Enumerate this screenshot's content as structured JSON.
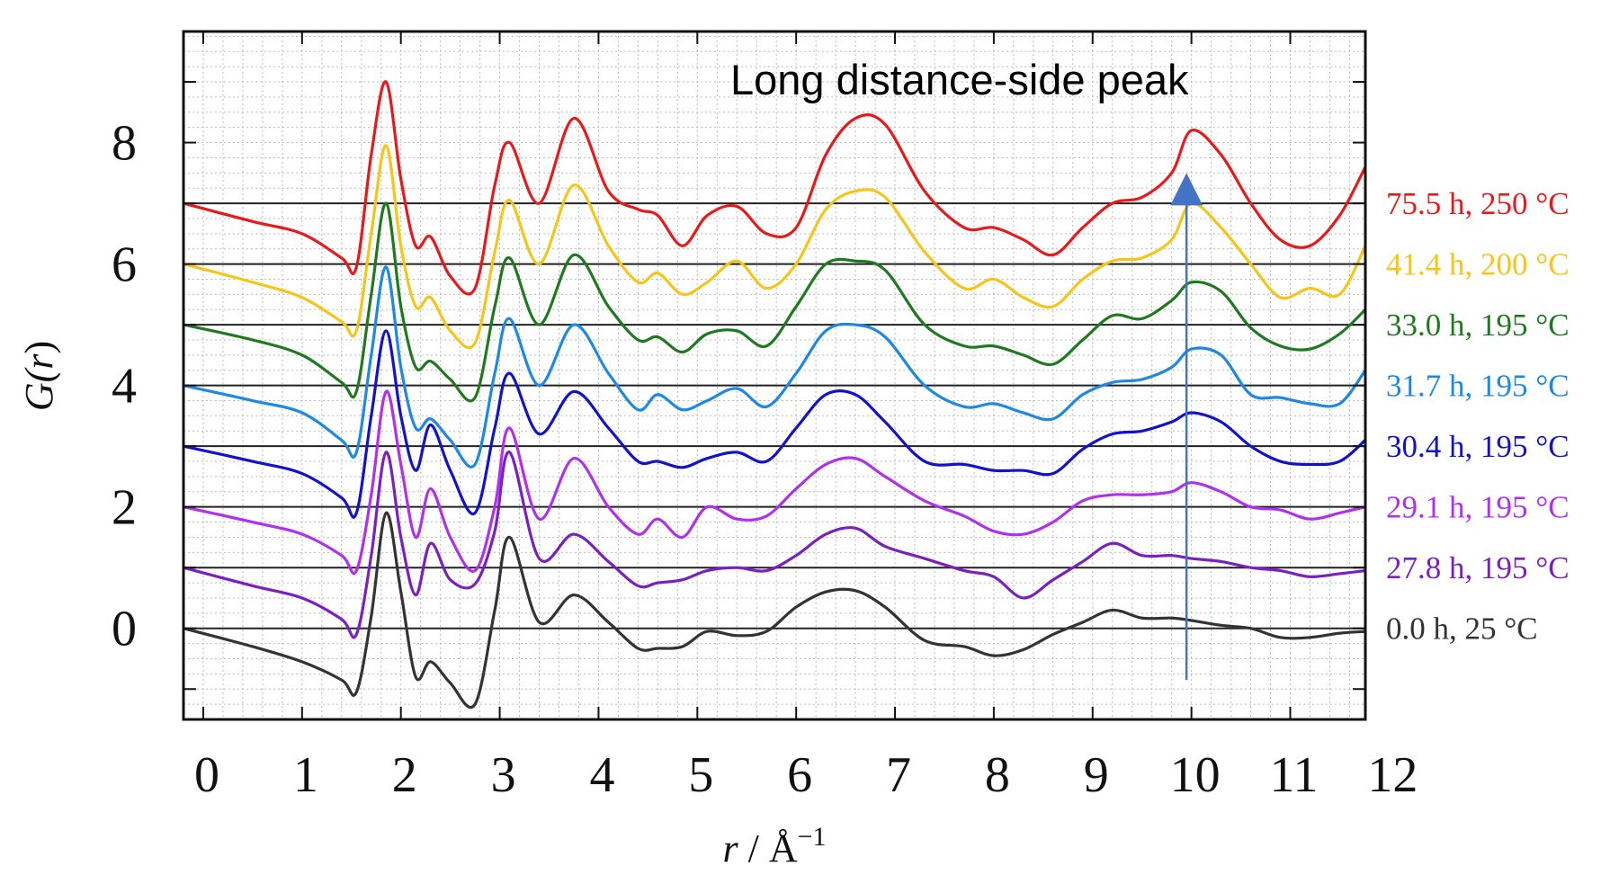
{
  "chart_data": {
    "type": "line",
    "title": "",
    "xlabel": "r / Å⁻¹",
    "xlabel_parts": {
      "var": "r",
      "sep": " / Å",
      "exp": "−1"
    },
    "ylabel": "G(r)",
    "ylabel_parts": {
      "pre": "G(",
      "var": "r",
      "post": ")"
    },
    "xlim": [
      -0.2,
      11.76
    ],
    "ylim": [
      -1.5,
      9.83
    ],
    "grid": true,
    "xticks": [
      "0",
      "1",
      "2",
      "3",
      "4",
      "5",
      "6",
      "7",
      "8",
      "9",
      "10",
      "11",
      "12"
    ],
    "yticks": [
      "0",
      "2",
      "4",
      "6",
      "8"
    ],
    "annotation": {
      "text": "Long distance-side peak",
      "arrow_r": 9.95,
      "arrow_from": -0.85,
      "arrow_to": 7.5,
      "arrow_color": "#4472c4"
    },
    "x": [
      -0.2,
      0.5,
      1.0,
      1.4,
      1.55,
      1.7,
      1.85,
      2.0,
      2.15,
      2.3,
      2.5,
      2.75,
      2.95,
      3.1,
      3.4,
      3.75,
      4.1,
      4.4,
      4.6,
      4.85,
      5.1,
      5.4,
      5.7,
      6.0,
      6.3,
      6.6,
      6.9,
      7.3,
      7.7,
      8.0,
      8.3,
      8.6,
      8.9,
      9.2,
      9.5,
      9.8,
      10.0,
      10.3,
      10.6,
      10.9,
      11.2,
      11.5,
      11.76
    ],
    "series": [
      {
        "name": "75.5 h, 250 °C",
        "color": "#e8191b",
        "baseline": 7,
        "values": [
          7.0,
          6.7,
          6.5,
          6.1,
          5.95,
          7.8,
          9.0,
          7.4,
          6.3,
          6.45,
          5.8,
          5.6,
          7.3,
          8.0,
          7.0,
          8.4,
          7.2,
          6.9,
          6.8,
          6.3,
          6.8,
          6.95,
          6.5,
          6.6,
          7.8,
          8.4,
          8.3,
          7.2,
          6.6,
          6.6,
          6.4,
          6.15,
          6.6,
          7.0,
          7.1,
          7.5,
          8.2,
          7.8,
          7.0,
          6.4,
          6.3,
          6.8,
          7.6
        ]
      },
      {
        "name": "41.4 h, 200 °C",
        "color": "#f5c518",
        "baseline": 6,
        "values": [
          6.0,
          5.7,
          5.45,
          5.05,
          4.9,
          6.5,
          7.95,
          6.3,
          5.3,
          5.45,
          4.9,
          4.7,
          6.2,
          7.05,
          6.0,
          7.3,
          6.3,
          5.7,
          5.85,
          5.5,
          5.7,
          6.05,
          5.6,
          6.0,
          6.9,
          7.2,
          7.1,
          6.2,
          5.6,
          5.75,
          5.45,
          5.3,
          5.75,
          6.05,
          6.1,
          6.4,
          7.0,
          6.6,
          6.0,
          5.45,
          5.6,
          5.5,
          6.3
        ]
      },
      {
        "name": "33.0 h, 195 °C",
        "color": "#1f7a1f",
        "baseline": 5,
        "values": [
          5.0,
          4.75,
          4.5,
          4.05,
          3.9,
          5.5,
          7.0,
          5.3,
          4.3,
          4.4,
          4.1,
          3.8,
          5.3,
          6.1,
          5.0,
          6.15,
          5.3,
          4.75,
          4.8,
          4.55,
          4.85,
          4.9,
          4.65,
          5.3,
          6.0,
          6.05,
          5.9,
          5.0,
          4.65,
          4.65,
          4.5,
          4.35,
          4.75,
          5.15,
          5.1,
          5.4,
          5.7,
          5.55,
          4.95,
          4.65,
          4.6,
          4.85,
          5.25
        ]
      },
      {
        "name": "31.7 h, 195 °C",
        "color": "#1e88e5",
        "baseline": 4,
        "values": [
          4.0,
          3.75,
          3.55,
          3.1,
          2.9,
          4.5,
          5.95,
          4.3,
          3.3,
          3.45,
          3.1,
          2.7,
          4.2,
          5.1,
          4.0,
          5.0,
          4.2,
          3.6,
          3.85,
          3.6,
          3.75,
          3.95,
          3.65,
          4.2,
          4.9,
          5.0,
          4.8,
          4.0,
          3.65,
          3.7,
          3.55,
          3.45,
          3.85,
          4.05,
          4.1,
          4.3,
          4.6,
          4.5,
          3.85,
          3.8,
          3.7,
          3.7,
          4.25
        ]
      },
      {
        "name": "30.4 h, 195 °C",
        "color": "#1212cc",
        "baseline": 3,
        "values": [
          3.0,
          2.75,
          2.55,
          2.15,
          1.9,
          3.5,
          4.9,
          3.5,
          2.6,
          3.35,
          2.6,
          1.9,
          3.3,
          4.2,
          3.2,
          3.9,
          3.3,
          2.75,
          2.75,
          2.65,
          2.8,
          2.9,
          2.75,
          3.3,
          3.85,
          3.85,
          3.4,
          2.75,
          2.7,
          2.6,
          2.6,
          2.55,
          2.95,
          3.2,
          3.25,
          3.4,
          3.55,
          3.4,
          3.0,
          2.75,
          2.7,
          2.75,
          3.1
        ]
      },
      {
        "name": "29.1 h, 195 °C",
        "color": "#b030f0",
        "baseline": 2,
        "values": [
          2.0,
          1.75,
          1.55,
          1.2,
          0.95,
          2.2,
          3.9,
          2.7,
          1.5,
          2.3,
          1.5,
          0.95,
          2.0,
          3.3,
          1.8,
          2.8,
          2.0,
          1.55,
          1.8,
          1.5,
          2.0,
          1.8,
          1.85,
          2.3,
          2.7,
          2.8,
          2.5,
          2.1,
          1.85,
          1.6,
          1.55,
          1.75,
          2.1,
          2.2,
          2.2,
          2.25,
          2.4,
          2.25,
          2.0,
          1.95,
          1.8,
          1.9,
          2.0
        ]
      },
      {
        "name": "27.8 h, 195 °C",
        "color": "#7a1fc0",
        "baseline": 1,
        "values": [
          1.0,
          0.7,
          0.5,
          0.15,
          -0.1,
          1.2,
          2.9,
          1.5,
          0.55,
          1.4,
          0.8,
          0.73,
          1.6,
          2.9,
          1.15,
          1.55,
          1.1,
          0.7,
          0.75,
          0.8,
          0.95,
          1.0,
          0.95,
          1.2,
          1.55,
          1.65,
          1.35,
          1.15,
          0.95,
          0.85,
          0.5,
          0.8,
          1.1,
          1.4,
          1.2,
          1.2,
          1.15,
          1.1,
          1.0,
          0.95,
          0.85,
          0.9,
          0.95
        ]
      },
      {
        "name": "0.0 h, 25 °C",
        "color": "#333333",
        "baseline": 0,
        "values": [
          0.0,
          -0.3,
          -0.55,
          -0.85,
          -1.05,
          0.2,
          1.9,
          0.6,
          -0.8,
          -0.55,
          -0.9,
          -1.25,
          0.3,
          1.5,
          0.1,
          0.55,
          0.1,
          -0.33,
          -0.33,
          -0.3,
          -0.05,
          -0.12,
          -0.05,
          0.35,
          0.6,
          0.62,
          0.35,
          -0.2,
          -0.3,
          -0.45,
          -0.35,
          -0.1,
          0.1,
          0.3,
          0.17,
          0.17,
          0.13,
          0.05,
          0.0,
          -0.15,
          -0.15,
          -0.08,
          -0.05
        ]
      }
    ]
  }
}
